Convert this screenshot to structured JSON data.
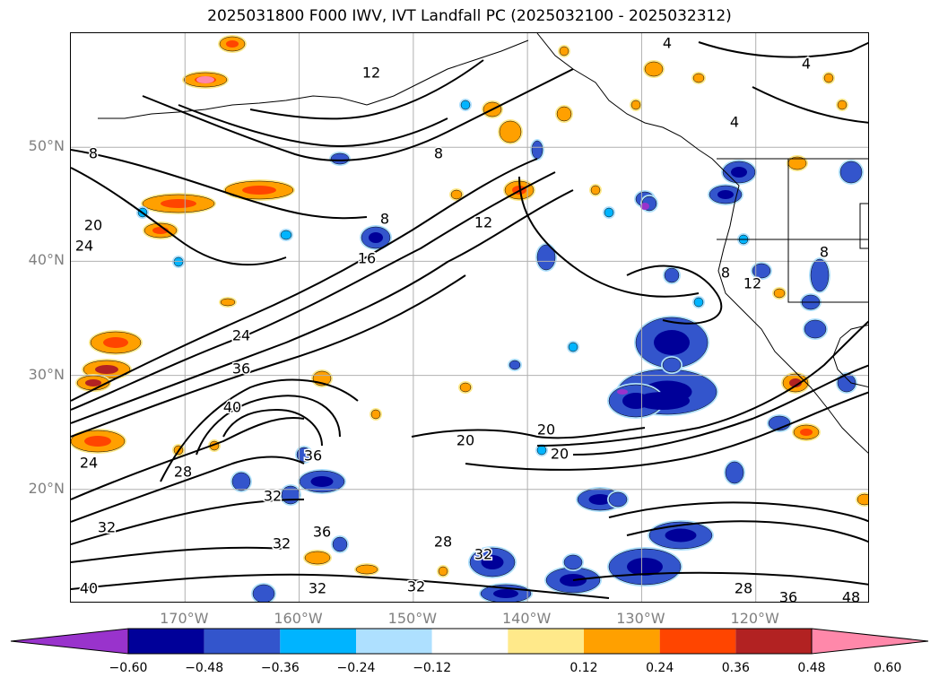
{
  "title": "2025031800 F000 IWV, IVT Landfall PC (2025032100 - 2025032312)",
  "map": {
    "lon_range": [
      -180,
      -110
    ],
    "lat_range": [
      10,
      60
    ],
    "lat_ticks": [
      {
        "value": 50,
        "label": "50°N"
      },
      {
        "value": 40,
        "label": "40°N"
      },
      {
        "value": 30,
        "label": "30°N"
      },
      {
        "value": 20,
        "label": "20°N"
      }
    ],
    "lon_ticks": [
      {
        "value": -170,
        "label": "170°W"
      },
      {
        "value": -160,
        "label": "160°W"
      },
      {
        "value": -150,
        "label": "150°W"
      },
      {
        "value": -140,
        "label": "140°W"
      },
      {
        "value": -130,
        "label": "130°W"
      },
      {
        "value": -120,
        "label": "120°W"
      }
    ],
    "grid": true,
    "iwv_contour_labels": [
      "4",
      "4",
      "4",
      "8",
      "8",
      "8",
      "8",
      "8",
      "12",
      "12",
      "12",
      "16",
      "20",
      "20",
      "20",
      "20",
      "24",
      "24",
      "24",
      "28",
      "28",
      "28",
      "32",
      "32",
      "32",
      "32",
      "32",
      "32",
      "36",
      "36",
      "36",
      "36",
      "40",
      "40",
      "48"
    ],
    "iwv_contour_levels": [
      4,
      8,
      12,
      16,
      20,
      24,
      28,
      32,
      36,
      40,
      44,
      48
    ]
  },
  "colorbar": {
    "tick_labels": [
      "−0.60",
      "−0.48",
      "−0.36",
      "−0.24",
      "−0.12",
      "0.12",
      "0.24",
      "0.36",
      "0.48",
      "0.60"
    ],
    "colors": [
      "#9933cc",
      "#000099",
      "#3355cc",
      "#00b4ff",
      "#aee0ff",
      "#ffffff",
      "#ffe98a",
      "#ffa000",
      "#ff4500",
      "#b22222",
      "#ff88aa"
    ],
    "extend": "both"
  },
  "chart_data": {
    "type": "contour map",
    "title": "2025031800 F000 IWV, IVT Landfall PC (2025032100 - 2025032312)",
    "lat_range": [
      10,
      60
    ],
    "lon_range": [
      -180,
      -110
    ],
    "colorbar_levels": [
      -0.6,
      -0.48,
      -0.36,
      -0.24,
      -0.12,
      0.12,
      0.24,
      0.36,
      0.48,
      0.6
    ],
    "iwv_contour_levels": [
      4,
      8,
      12,
      16,
      20,
      24,
      28,
      32,
      36,
      40,
      44,
      48
    ]
  }
}
